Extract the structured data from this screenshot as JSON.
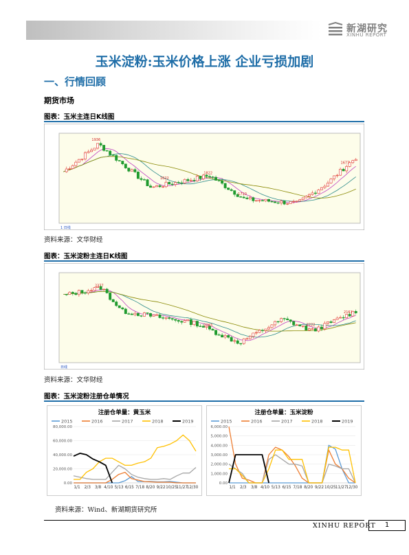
{
  "header": {
    "logo_cn": "新湖研究",
    "logo_en": "XINHU REPORT"
  },
  "title": "玉米淀粉:玉米价格上涨 企业亏损加剧",
  "section_heading": "一、行情回顾",
  "subsection_heading": "期货市场",
  "figures": [
    {
      "label": "图表：玉米主连日K线图",
      "source": "资料来源：文华财经"
    },
    {
      "label": "图表：玉米淀粉主连日K线图",
      "source": "资料来源：文华财经"
    },
    {
      "label": "图表：玉米淀粉注册仓单情况",
      "source": "资料来源：Wind、新湖期货研究所"
    }
  ],
  "colors": {
    "accent": "#1f6ea8",
    "candle_up": "#e0342a",
    "candle_down": "#1f9a2e",
    "kline_bg": "#fdfdea"
  },
  "kline_charts": [
    {
      "type": "candlestick",
      "series": [
        "close"
      ],
      "trend": "rally, decline to low, recovery to new high",
      "annotations": [
        "1936",
        "1822",
        "1622",
        "1710",
        "1677"
      ],
      "bottom_label": "1 日线"
    },
    {
      "type": "candlestick",
      "series": [
        "close"
      ],
      "trend": "high, decline, trough, recovery to new high",
      "annotations": [
        "2377",
        "2263",
        "2222",
        "2161"
      ],
      "bottom_label": "日线"
    }
  ],
  "chart_data": [
    {
      "type": "line",
      "title": "注册仓单量：黄玉米",
      "x_ticks": [
        "1/1",
        "2/3",
        "3/8",
        "4/10",
        "5/13",
        "6/15",
        "7/18",
        "8/20",
        "9/22",
        "10/25",
        "11/27",
        "12/30"
      ],
      "y_ticks": [
        "0.00",
        "20,000.00",
        "40,000.00",
        "60,000.00",
        "80,000.00"
      ],
      "ylim": [
        0,
        80000
      ],
      "series": [
        {
          "name": "2015",
          "color": "#5b9bd5",
          "values": [
            0,
            0,
            0,
            0,
            0,
            0,
            0,
            0,
            3000,
            9000,
            2000,
            2000,
            2000,
            1500,
            1500,
            2000,
            1000,
            0,
            0,
            0
          ]
        },
        {
          "name": "2016",
          "color": "#ed7d31",
          "values": [
            0,
            0,
            0,
            0,
            0,
            0,
            5000,
            12000,
            15000,
            6000,
            4000,
            2000,
            1500,
            1000,
            1000,
            1000,
            0,
            0,
            0,
            0
          ]
        },
        {
          "name": "2017",
          "color": "#a5a5a5",
          "values": [
            10000,
            8000,
            6000,
            5000,
            5000,
            5000,
            15000,
            25000,
            20000,
            12000,
            8000,
            6000,
            5000,
            5000,
            6000,
            5000,
            10000,
            14000,
            14000,
            22000
          ]
        },
        {
          "name": "2018",
          "color": "#ffc000",
          "values": [
            5000,
            5000,
            15000,
            20000,
            30000,
            35000,
            35000,
            30000,
            25000,
            25000,
            28000,
            30000,
            35000,
            50000,
            52000,
            55000,
            60000,
            68000,
            60000,
            45000
          ]
        },
        {
          "name": "2019",
          "color": "#000000",
          "values": [
            38000,
            42000,
            40000,
            34000,
            30000,
            25000,
            0
          ]
        }
      ]
    },
    {
      "type": "line",
      "title": "注册仓单量：玉米淀粉",
      "x_ticks": [
        "1/1",
        "2/3",
        "3/8",
        "4/10",
        "5/13",
        "6/15",
        "7/18",
        "8/20",
        "9/22",
        "10/25",
        "11/27",
        "12/30"
      ],
      "y_ticks": [
        "0.00",
        "1,000.00",
        "2,000.00",
        "3,000.00",
        "4,000.00",
        "5,000.00",
        "6,000.00"
      ],
      "ylim": [
        0,
        6000
      ],
      "series": [
        {
          "name": "2015",
          "color": "#5b9bd5",
          "values": [
            0,
            0,
            0,
            0,
            0,
            0,
            0,
            0,
            0,
            0,
            0,
            0,
            0,
            0,
            0,
            4000,
            3600,
            1500,
            0,
            0
          ]
        },
        {
          "name": "2016",
          "color": "#ed7d31",
          "values": [
            6000,
            2000,
            500,
            300,
            0,
            0,
            3000,
            3800,
            3500,
            2800,
            1800,
            500,
            0,
            0,
            0,
            3500,
            2000,
            1500,
            500,
            0
          ]
        },
        {
          "name": "2017",
          "color": "#a5a5a5",
          "values": [
            2000,
            1500,
            1000,
            0,
            0,
            0,
            2500,
            3000,
            2500,
            2000,
            2000,
            1800,
            0,
            0,
            0,
            2000,
            1800,
            1500,
            1500,
            0
          ]
        },
        {
          "name": "2018",
          "color": "#ffc000",
          "values": [
            1500,
            1500,
            800,
            0,
            0,
            0,
            1500,
            3500,
            3500,
            2500,
            2500,
            2500,
            0,
            0,
            0,
            3800,
            3800,
            3500,
            3500,
            0
          ]
        },
        {
          "name": "2019",
          "color": "#000000",
          "values": [
            0,
            3000,
            3000,
            3000,
            3000,
            3000,
            0
          ]
        }
      ]
    }
  ],
  "footer": {
    "report": "XINHU REPORT",
    "page": "1"
  }
}
